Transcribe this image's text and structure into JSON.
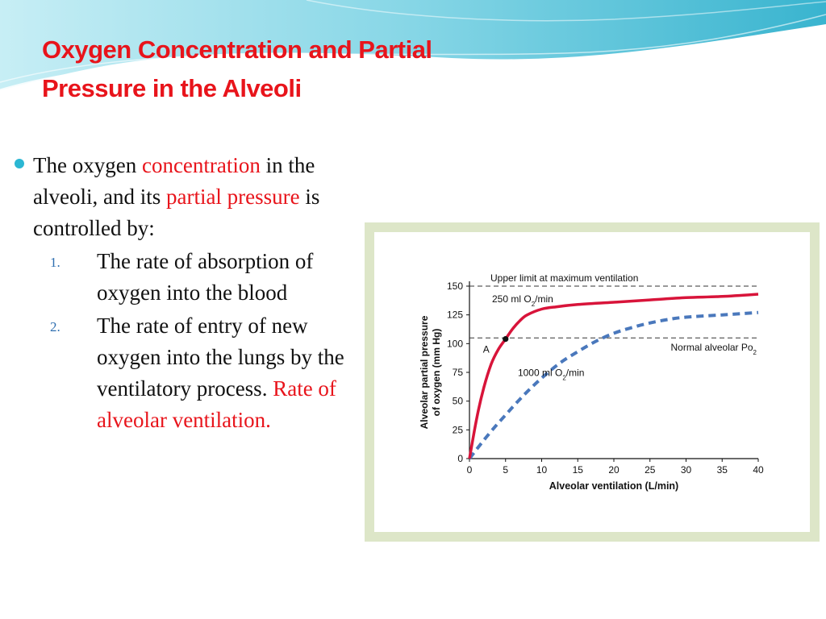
{
  "slide": {
    "title_line1": "Oxygen Concentration and Partial",
    "title_line2": "Pressure in the Alveoli",
    "bullet": {
      "p1": "The oxygen ",
      "hl1": "concentration",
      "p2": " in the alveoli, and its ",
      "hl2": "partial pressure",
      "p3": "  is controlled by:"
    },
    "items": [
      {
        "num": "1.",
        "text": "The rate of absorption of oxygen into the blood",
        "highlight": ""
      },
      {
        "num": "2.",
        "text": "The rate of entry of new oxygen into the lungs by the ventilatory process.",
        "highlight": "Rate of alveolar ventilation."
      }
    ]
  },
  "colors": {
    "title": "#e8141b",
    "highlight": "#e8141b",
    "bullet_dot": "#2bb7d3",
    "number": "#2f6fb0",
    "frame": "#dde6c8",
    "curve_250": "#d8143a",
    "curve_1000": "#4a78bc",
    "reference_line": "#333333"
  },
  "chart_data": {
    "type": "line",
    "xlabel": "Alveolar ventilation (L/min)",
    "ylabel_line1": "Alveolar partial pressure",
    "ylabel_line2": "of oxygen (mm Hg)",
    "xlim": [
      0,
      40
    ],
    "ylim": [
      0,
      150
    ],
    "xticks": [
      0,
      5,
      10,
      15,
      20,
      25,
      30,
      35,
      40
    ],
    "yticks": [
      0,
      25,
      50,
      75,
      100,
      125,
      150
    ],
    "reference_lines": [
      {
        "y": 150,
        "label": "Upper limit at maximum ventilation"
      },
      {
        "y": 105,
        "label": "Normal alveolar Po",
        "label_sub": "2"
      }
    ],
    "point": {
      "x": 5,
      "y": 104,
      "label": "A"
    },
    "series": [
      {
        "name_prefix": "250 ml O",
        "name_sub": "2",
        "name_suffix": "/min",
        "style": "solid",
        "x": [
          0,
          1,
          2,
          3,
          4,
          5,
          6,
          7,
          8,
          10,
          12,
          15,
          20,
          25,
          30,
          35,
          40
        ],
        "y": [
          0,
          35,
          62,
          82,
          95,
          104,
          113,
          120,
          125,
          130,
          132,
          134,
          136,
          138,
          140,
          141,
          143
        ]
      },
      {
        "name_prefix": "1000 ml O",
        "name_sub": "2",
        "name_suffix": "/min",
        "style": "dashed",
        "x": [
          0,
          2.5,
          5,
          7.5,
          10,
          12.5,
          15,
          17.5,
          20,
          22.5,
          25,
          27.5,
          30,
          35,
          40
        ],
        "y": [
          0,
          20,
          38,
          55,
          70,
          83,
          93,
          102,
          109,
          114,
          118,
          121,
          123,
          125,
          127
        ]
      }
    ]
  }
}
